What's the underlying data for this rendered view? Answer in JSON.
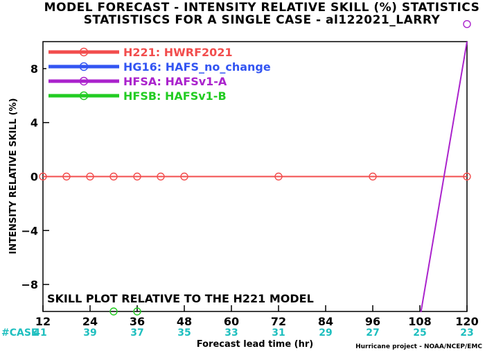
{
  "chart_data": {
    "type": "line",
    "title": "MODEL FORECAST - INTENSITY RELATIVE SKILL (%) STATISTICS",
    "subtitle": "STATISTISCS FOR A SINGLE CASE - al122021_LARRY",
    "xlabel": "Forecast lead time (hr)",
    "ylabel": "INTENSITY RELATIVE SKILL (%)",
    "xlim": [
      12,
      120
    ],
    "ylim": [
      -10,
      10
    ],
    "xticks": [
      12,
      24,
      36,
      48,
      60,
      72,
      84,
      96,
      108,
      120
    ],
    "yticks": [
      -8,
      -4,
      0,
      4,
      8
    ],
    "grid": false,
    "legend_position": "top-left",
    "case_label": "#CASE",
    "case_x": [
      12,
      24,
      36,
      48,
      60,
      72,
      84,
      96,
      108,
      120
    ],
    "case_counts": [
      41,
      39,
      37,
      35,
      33,
      31,
      29,
      27,
      25,
      23
    ],
    "annotation": "SKILL PLOT RELATIVE TO THE H221 MODEL",
    "footer": "Hurricane project - NOAA/NCEP/EMC",
    "series": [
      {
        "name": "H221: HWRF2021",
        "color": "#f24d4d",
        "x": [
          12,
          18,
          24,
          30,
          36,
          42,
          48,
          72,
          96,
          120
        ],
        "y": [
          0,
          0,
          0,
          0,
          0,
          0,
          0,
          0,
          0,
          0
        ]
      },
      {
        "name": "HG16: HAFS_no_change",
        "color": "#3355f2",
        "x": [],
        "y": []
      },
      {
        "name": "HFSA: HAFSv1-A",
        "color": "#aa22cc",
        "x": [
          108,
          120
        ],
        "y": [
          -10.5,
          10
        ],
        "markers": [
          {
            "x": 120,
            "y": 11.3
          }
        ]
      },
      {
        "name": "HFSB: HAFSv1-B",
        "color": "#22cc22",
        "x": [],
        "y": [],
        "markers": [
          {
            "x": 30,
            "y": -10
          },
          {
            "x": 36,
            "y": -10
          }
        ]
      }
    ]
  }
}
